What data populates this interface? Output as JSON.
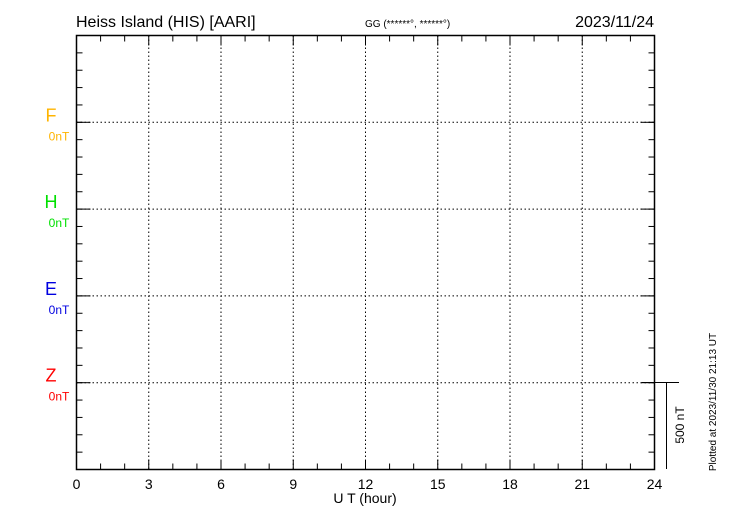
{
  "header": {
    "station": "Heiss Island (HIS)  [AARI]",
    "coords": "GG (******°, ******°)",
    "date": "2023/11/24"
  },
  "footer": {
    "plotted": "Plotted at 2023/11/30 21:13 UT"
  },
  "chart_data": {
    "type": "line",
    "xlabel": "U T (hour)",
    "xlim": [
      0,
      24
    ],
    "xticks": [
      "0",
      "3",
      "6",
      "9",
      "12",
      "15",
      "18",
      "21",
      "24"
    ],
    "grid": true,
    "scale_bar": "500 nT",
    "panels": [
      {
        "component": "F",
        "baseline": "0nT",
        "color": "#ffb400",
        "values": []
      },
      {
        "component": "H",
        "baseline": "0nT",
        "color": "#00e000",
        "values": []
      },
      {
        "component": "E",
        "baseline": "0nT",
        "color": "#0000e0",
        "values": []
      },
      {
        "component": "Z",
        "baseline": "0nT",
        "color": "#ff0000",
        "values": []
      }
    ]
  }
}
